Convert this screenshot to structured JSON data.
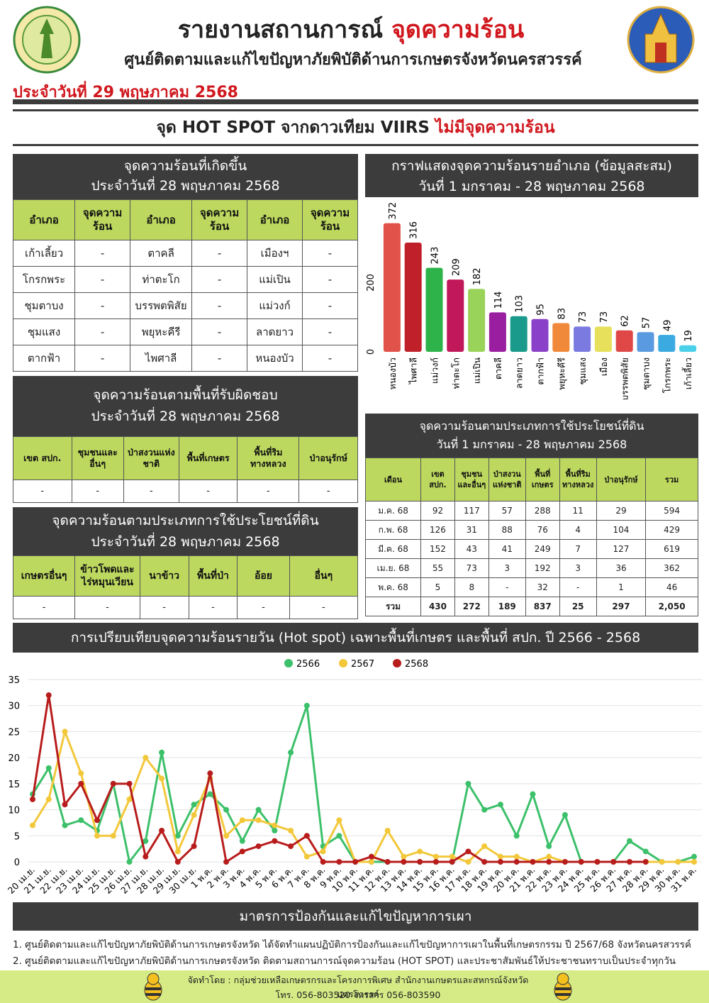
{
  "header": {
    "title_prefix": "รายงานสถานการณ์",
    "title_highlight": "จุดความร้อน",
    "subtitle": "ศูนย์ติดตามและแก้ไขปัญหาภัยพิบัติด้านการเกษตรจังหวัดนครสวรรค์",
    "date": "ประจำวันที่ 29 พฤษภาคม 2568"
  },
  "banner": {
    "text": "จุด HOT SPOT จากดาวเทียม VIIRS",
    "highlight": "ไม่มีจุดความร้อน"
  },
  "table_district": {
    "title": [
      "จุดความร้อนที่เกิดขึ้น",
      "ประจำวันที่ 28 พฤษภาคม 2568"
    ],
    "header": [
      "อำเภอ",
      "จุดความร้อน",
      "อำเภอ",
      "จุดความร้อน",
      "อำเภอ",
      "จุดความร้อน"
    ],
    "rows": [
      [
        "เก้าเลี้ยว",
        "-",
        "ตาคลี",
        "-",
        "เมืองฯ",
        "-"
      ],
      [
        "โกรกพระ",
        "-",
        "ท่าตะโก",
        "-",
        "แม่เปิน",
        "-"
      ],
      [
        "ชุมตาบง",
        "-",
        "บรรพตพิสัย",
        "-",
        "แม่วงก์",
        "-"
      ],
      [
        "ชุมแสง",
        "-",
        "พยุหะคีรี",
        "-",
        "ลาดยาว",
        "-"
      ],
      [
        "ตากฟ้า",
        "-",
        "ไพศาลี",
        "-",
        "หนองบัว",
        "-"
      ]
    ]
  },
  "table_area": {
    "title": [
      "จุดความร้อนตามพื้นที่รับผิดชอบ",
      "ประจำวันที่ 28 พฤษภาคม 2568"
    ],
    "header": [
      "เขต สปก.",
      "ชุมชนและอื่นๆ",
      "ป่าสงวนแห่งชาติ",
      "พื้นที่เกษตร",
      "พื้นที่ริมทางหลวง",
      "ป่าอนุรักษ์"
    ],
    "rows": [
      [
        "-",
        "-",
        "-",
        "-",
        "-",
        "-"
      ]
    ]
  },
  "table_landuse": {
    "title": [
      "จุดความร้อนตามประเภทการใช้ประโยชน์ที่ดิน",
      "ประจำวันที่ 28 พฤษภาคม 2568"
    ],
    "header": [
      "เกษตรอื่นๆ",
      "ข้าวโพดและไร่หมุนเวียน",
      "นาข้าว",
      "พื้นที่ป่า",
      "อ้อย",
      "อื่นๆ"
    ],
    "rows": [
      [
        "-",
        "-",
        "-",
        "-",
        "-",
        "-"
      ]
    ]
  },
  "table_monthly": {
    "title": [
      "จุดความร้อนตามประเภทการใช้ประโยชน์ที่ดิน",
      "วันที่ 1 มกราคม - 28 พฤษภาคม 2568"
    ],
    "header": [
      "เดือน",
      "เขต สปก.",
      "ชุมชนและอื่นๆ",
      "ป่าสงวนแห่งชาติ",
      "พื้นที่เกษตร",
      "พื้นที่ริมทางหลวง",
      "ป่าอนุรักษ์",
      "รวม"
    ],
    "rows": [
      [
        "ม.ค. 68",
        "92",
        "117",
        "57",
        "288",
        "11",
        "29",
        "594"
      ],
      [
        "ก.พ. 68",
        "126",
        "31",
        "88",
        "76",
        "4",
        "104",
        "429"
      ],
      [
        "มี.ค. 68",
        "152",
        "43",
        "41",
        "249",
        "7",
        "127",
        "619"
      ],
      [
        "เม.ย. 68",
        "55",
        "73",
        "3",
        "192",
        "3",
        "36",
        "362"
      ],
      [
        "พ.ค. 68",
        "5",
        "8",
        "-",
        "32",
        "-",
        "1",
        "46"
      ],
      [
        "รวม",
        "430",
        "272",
        "189",
        "837",
        "25",
        "297",
        "2,050"
      ]
    ]
  },
  "chart_data": [
    {
      "type": "bar",
      "title": "กราฟแสดงจุดความร้อนรายอำเภอ (ข้อมูลสะสม)",
      "subtitle": "วันที่ 1 มกราคม - 28 พฤษภาคม 2568",
      "categories": [
        "หนองบัว",
        "ไพศาลี",
        "แม่วงก์",
        "ท่าตะโก",
        "แม่เปิน",
        "ตาคลี",
        "ลาดยาว",
        "ตากฟ้า",
        "พยุหะคีรี",
        "ชุมแสง",
        "เมือง",
        "บรรพตพิสัย",
        "ชุมตาบง",
        "โกรกพระ",
        "เก้าเลี้ยว"
      ],
      "values": [
        372,
        316,
        243,
        209,
        182,
        114,
        103,
        95,
        83,
        73,
        73,
        62,
        57,
        49,
        19
      ],
      "colors": [
        "#e0524a",
        "#c0202a",
        "#2db34a",
        "#c0185a",
        "#9ad35a",
        "#9a1ea0",
        "#1a9a8a",
        "#8a40c8",
        "#f08a3a",
        "#7a7ae0",
        "#e6e05a",
        "#e04848",
        "#5a9ae0",
        "#3aaae0",
        "#4ad0e8"
      ],
      "ylim": [
        0,
        400
      ],
      "yticks": [
        0,
        200
      ]
    },
    {
      "type": "line",
      "title": "การเปรียบเทียบจุดความร้อนรายวัน (Hot spot)  เฉพาะพื้นที่เกษตร และพื้นที่ สปก. ปี 2566 - 2568",
      "categories": [
        "20 เม.ย.",
        "21 เม.ย.",
        "22 เม.ย.",
        "23 เม.ย.",
        "24 เม.ย.",
        "25 เม.ย.",
        "26 เม.ย.",
        "27 เม.ย.",
        "28 เม.ย.",
        "29 เม.ย.",
        "30 เม.ย.",
        "1 พ.ค.",
        "2 พ.ค.",
        "3 พ.ค.",
        "4 พ.ค.",
        "5 พ.ค.",
        "6 พ.ค.",
        "7 พ.ค.",
        "8 พ.ค.",
        "9 พ.ค.",
        "10 พ.ค.",
        "11 พ.ค.",
        "12 พ.ค.",
        "13 พ.ค.",
        "14 พ.ค.",
        "15 พ.ค.",
        "16 พ.ค.",
        "17 พ.ค.",
        "18 พ.ค.",
        "19 พ.ค.",
        "20 พ.ค.",
        "21 พ.ค.",
        "22 พ.ค.",
        "23 พ.ค.",
        "24 พ.ค.",
        "25 พ.ค.",
        "26 พ.ค.",
        "27 พ.ค.",
        "28 พ.ค.",
        "29 พ.ค.",
        "30 พ.ค.",
        "31 พ.ค."
      ],
      "series": [
        {
          "name": "2566",
          "color": "#3cc06a",
          "values": [
            13,
            18,
            7,
            8,
            6,
            15,
            0,
            4,
            21,
            5,
            11,
            13,
            10,
            4,
            10,
            6,
            21,
            30,
            3,
            5,
            0,
            0,
            0,
            0,
            0,
            0,
            0,
            15,
            10,
            11,
            5,
            13,
            3,
            9,
            0,
            0,
            0,
            4,
            2,
            0,
            0,
            1
          ]
        },
        {
          "name": "2567",
          "color": "#f2c83a",
          "values": [
            7,
            12,
            25,
            17,
            5,
            5,
            12,
            20,
            16,
            2,
            9,
            16,
            5,
            8,
            8,
            7,
            6,
            1,
            2,
            8,
            0,
            0,
            6,
            1,
            2,
            1,
            1,
            0,
            3,
            1,
            1,
            0,
            1,
            0,
            0,
            0,
            0,
            0,
            0,
            0,
            0,
            0
          ]
        },
        {
          "name": "2568",
          "color": "#b81c1c",
          "values": [
            12,
            32,
            11,
            15,
            8,
            15,
            15,
            1,
            6,
            0,
            3,
            17,
            0,
            2,
            3,
            4,
            3,
            5,
            0,
            0,
            0,
            1,
            0,
            0,
            0,
            0,
            0,
            2,
            0,
            0,
            0,
            0,
            0,
            0,
            0,
            0,
            0,
            0,
            0,
            null,
            null,
            null
          ]
        }
      ],
      "ylim": [
        0,
        35
      ],
      "yticks": [
        0,
        5,
        10,
        15,
        20,
        25,
        30,
        35
      ],
      "grid": true
    }
  ],
  "measures": {
    "title": "มาตรการป้องกันและแก้ไขปัญหาการเผา",
    "items": [
      "1. ศูนย์ติดตามและแก้ไขปัญหาภัยพิบัติด้านการเกษตรจังหวัด ได้จัดทำแผนปฏิบัติการป้องกันและแก้ไขปัญหาการเผาในพื้นที่เกษตรกรรม ปี 2567/68 จังหวัดนครสวรรค์",
      "2. ศูนย์ติดตามและแก้ไขปัญหาภัยพิบัติด้านการเกษตรจังหวัด ติดตามสถานการณ์จุดความร้อน (HOT SPOT) และประชาสัมพันธ์ให้ประชาชนทราบเป็นประจำทุกวัน"
    ]
  },
  "footer": {
    "producer": "จัดทำโดย : กลุ่มช่วยเหลือเกษตรกรและโครงการพิเศษ สำนักงานเกษตรและสหกรณ์จังหวัดนครสวรรค์",
    "contact": "โทร. 056-803520 โทรสาร 056-803590"
  }
}
